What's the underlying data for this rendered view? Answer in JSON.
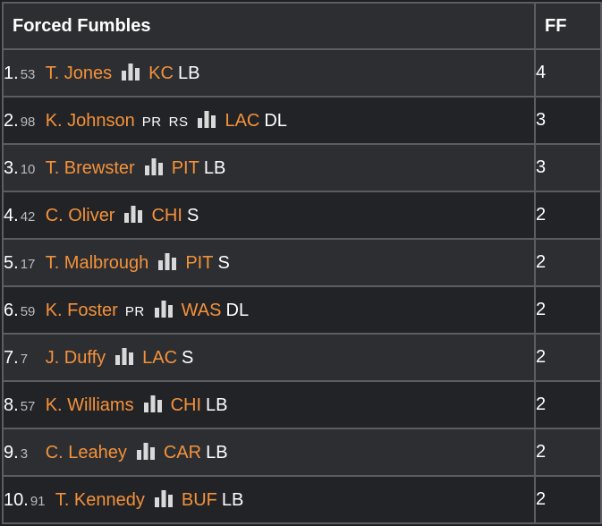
{
  "table": {
    "header_title": "Forced Fumbles",
    "header_value": "FF"
  },
  "rows": [
    {
      "rank": "1.",
      "number": "53",
      "name": "T. Jones",
      "tags": [],
      "team": "KC",
      "pos": "LB",
      "value": "4"
    },
    {
      "rank": "2.",
      "number": "98",
      "name": "K. Johnson",
      "tags": [
        "PR",
        "RS"
      ],
      "team": "LAC",
      "pos": "DL",
      "value": "3"
    },
    {
      "rank": "3.",
      "number": "10",
      "name": "T. Brewster",
      "tags": [],
      "team": "PIT",
      "pos": "LB",
      "value": "3"
    },
    {
      "rank": "4.",
      "number": "42",
      "name": "C. Oliver",
      "tags": [],
      "team": "CHI",
      "pos": "S",
      "value": "2"
    },
    {
      "rank": "5.",
      "number": "17",
      "name": "T. Malbrough",
      "tags": [],
      "team": "PIT",
      "pos": "S",
      "value": "2"
    },
    {
      "rank": "6.",
      "number": "59",
      "name": "K. Foster",
      "tags": [
        "PR"
      ],
      "team": "WAS",
      "pos": "DL",
      "value": "2"
    },
    {
      "rank": "7.",
      "number": "7",
      "name": "J. Duffy",
      "tags": [],
      "team": "LAC",
      "pos": "S",
      "value": "2"
    },
    {
      "rank": "8.",
      "number": "57",
      "name": "K. Williams",
      "tags": [],
      "team": "CHI",
      "pos": "LB",
      "value": "2"
    },
    {
      "rank": "9.",
      "number": "3",
      "name": "C. Leahey",
      "tags": [],
      "team": "CAR",
      "pos": "LB",
      "value": "2"
    },
    {
      "rank": "10.",
      "number": "91",
      "name": "T. Kennedy",
      "tags": [],
      "team": "BUF",
      "pos": "LB",
      "value": "2"
    }
  ],
  "icons": {
    "stats": "bar-chart-icon"
  },
  "colors": {
    "link": "#f4923a",
    "border": "#5b5d61",
    "row_odd": "#2c2e32",
    "row_even": "#222327"
  }
}
